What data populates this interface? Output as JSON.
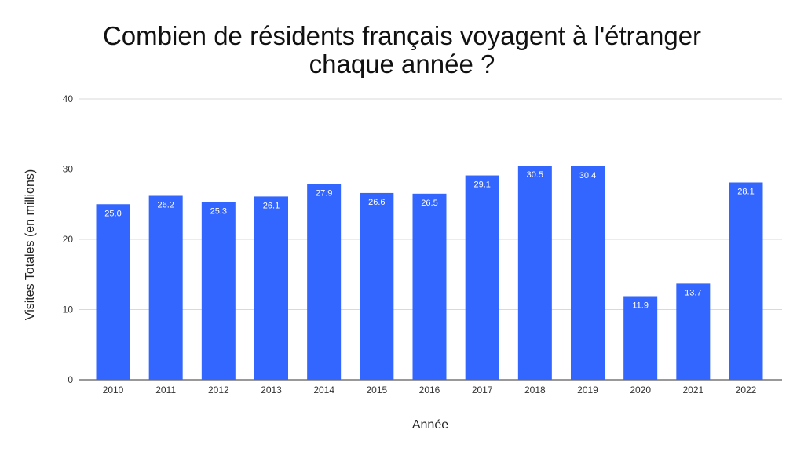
{
  "chart_data": {
    "type": "bar",
    "title_line1": "Combien de résidents français voyagent à l'étranger",
    "title_line2": "chaque année ?",
    "xlabel": "Année",
    "ylabel": "Visites Totales (en millions)",
    "ylim": [
      0,
      40
    ],
    "yticks": [
      "0",
      "10",
      "20",
      "30",
      "40"
    ],
    "grid": true,
    "categories": [
      "2010",
      "2011",
      "2012",
      "2013",
      "2014",
      "2015",
      "2016",
      "2017",
      "2018",
      "2019",
      "2020",
      "2021",
      "2022"
    ],
    "values": [
      25.0,
      26.2,
      25.3,
      26.1,
      27.9,
      26.6,
      26.5,
      29.1,
      30.5,
      30.4,
      11.9,
      13.7,
      28.1
    ],
    "value_labels": [
      "25.0",
      "26.2",
      "25.3",
      "26.1",
      "27.9",
      "26.6",
      "26.5",
      "29.1",
      "30.5",
      "30.4",
      "11.9",
      "13.7",
      "28.1"
    ],
    "bar_color": "#3366ff",
    "grid_color": "#d9d9d9",
    "baseline_color": "#333333"
  }
}
